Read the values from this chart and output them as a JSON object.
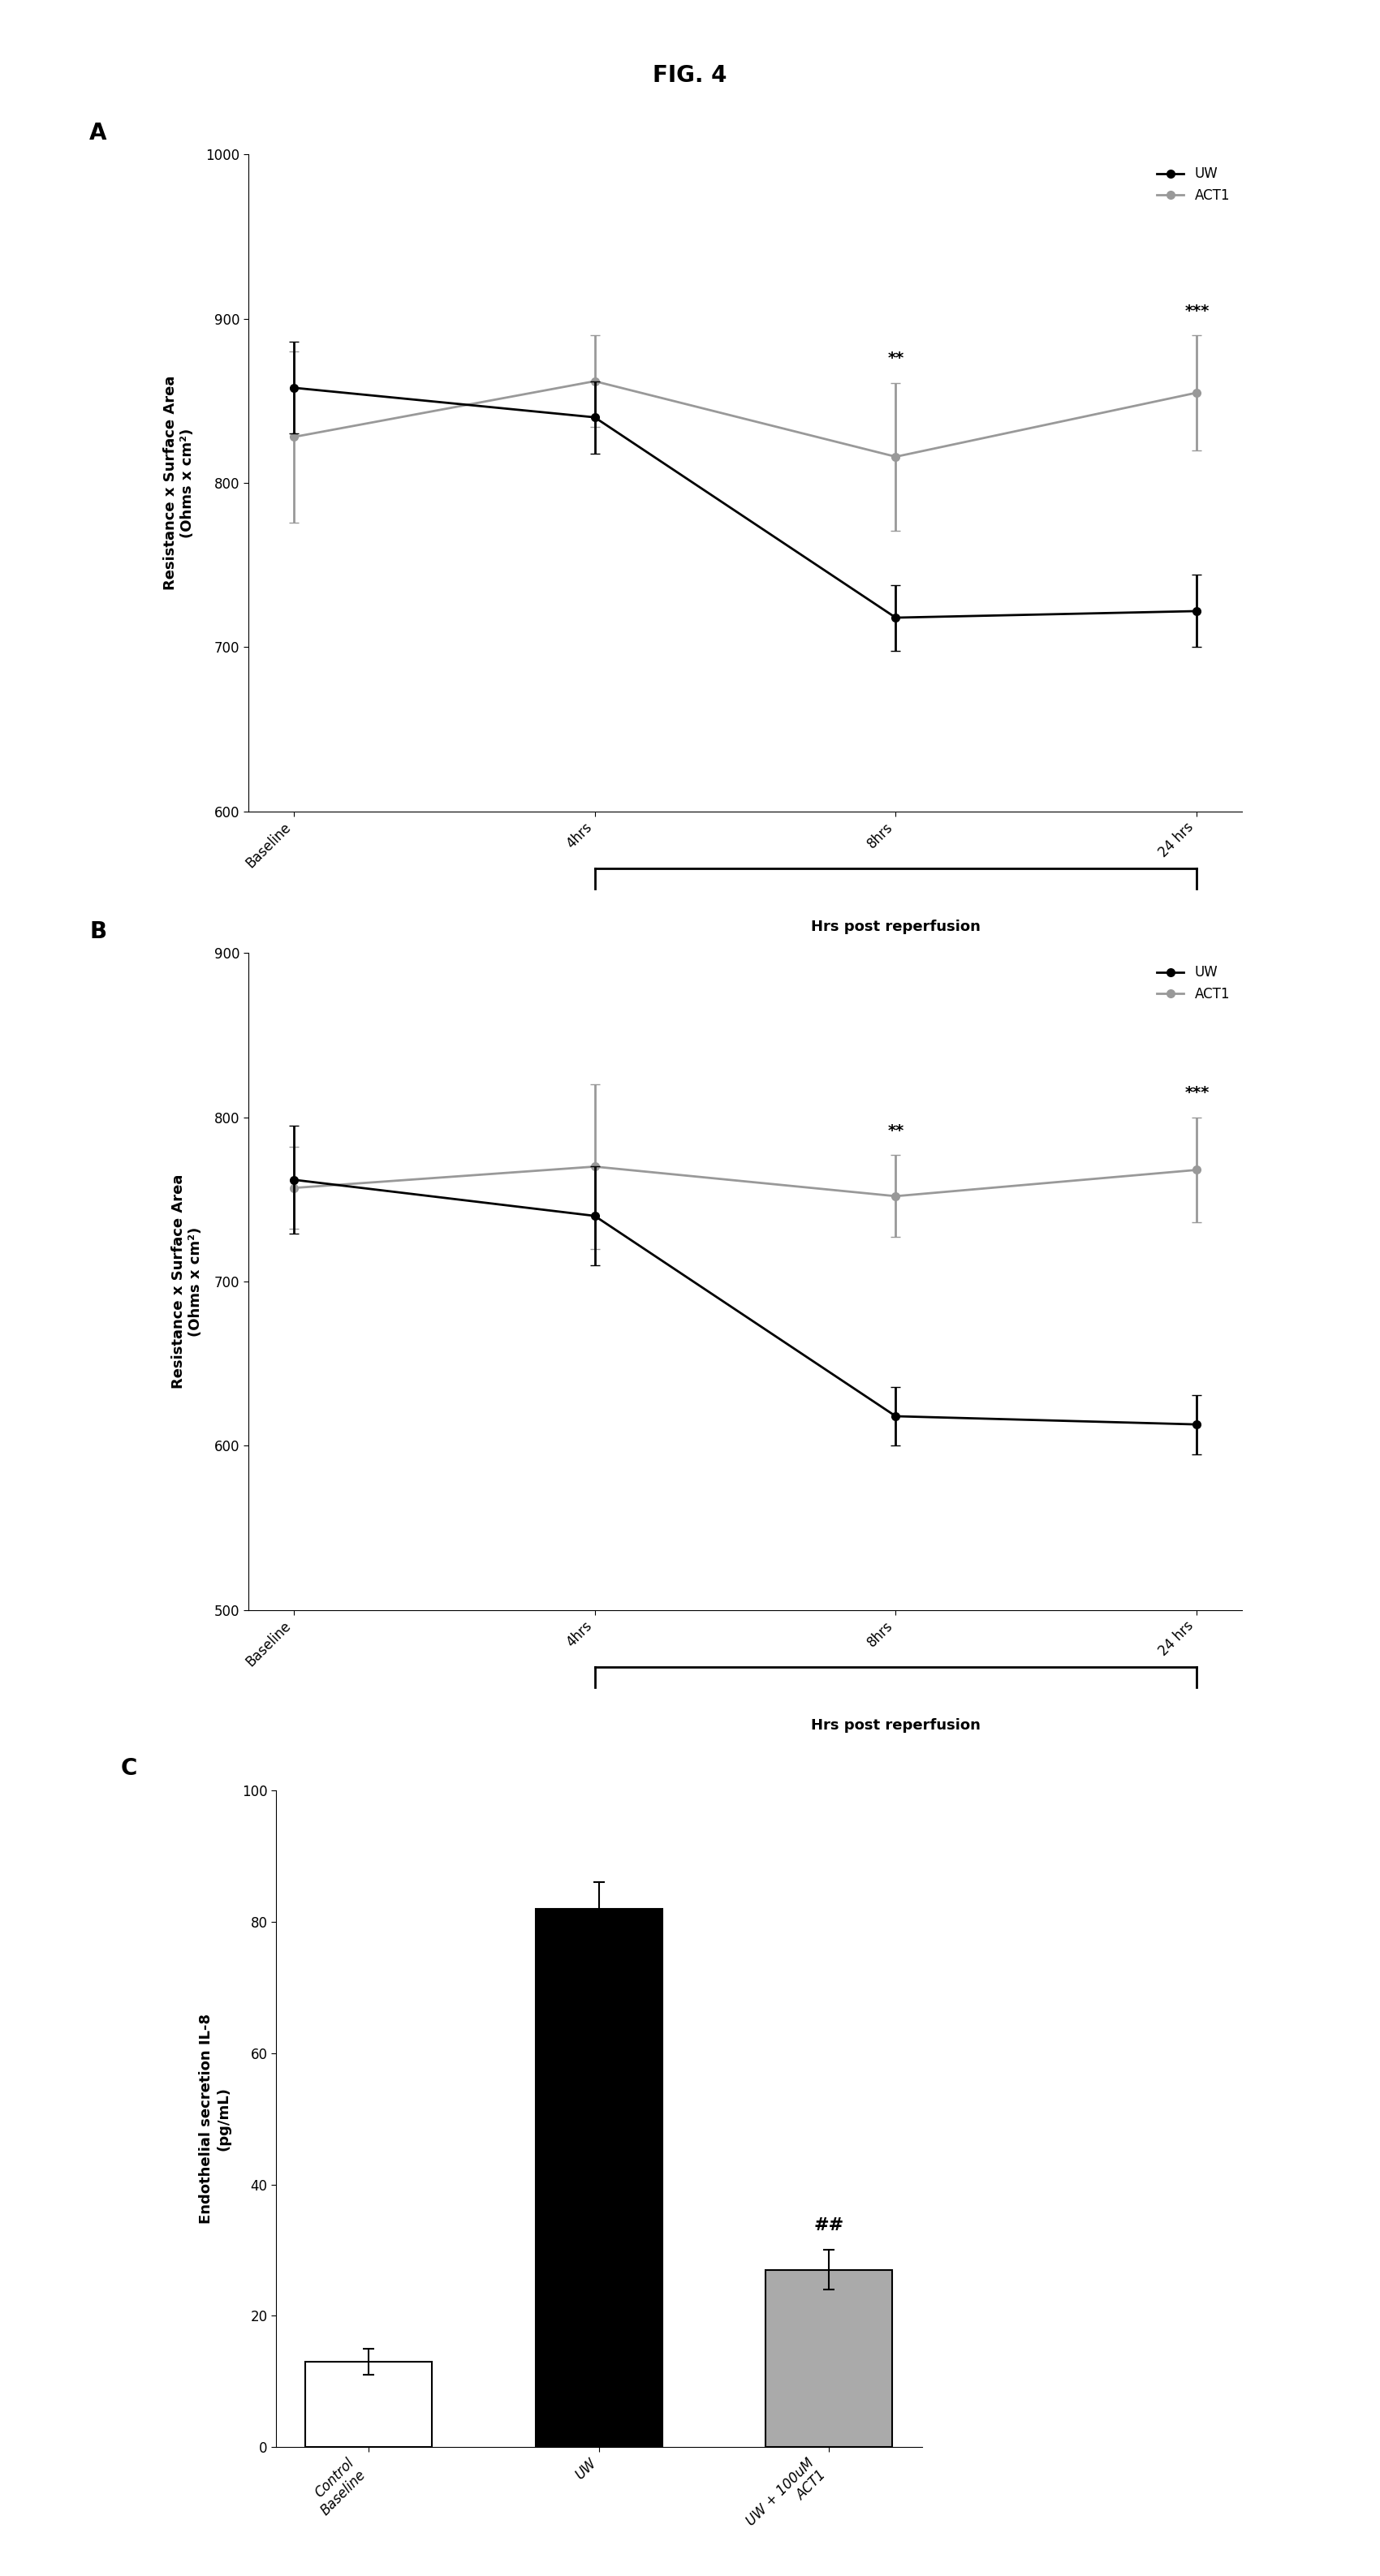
{
  "fig_title": "FIG. 4",
  "panel_A": {
    "label": "A",
    "x_positions": [
      0,
      1,
      2,
      3
    ],
    "x_ticklabels": [
      "Baseline",
      "4hrs",
      "8hrs",
      "24 hrs"
    ],
    "UW_mean": [
      858,
      840,
      718,
      722
    ],
    "UW_err": [
      28,
      22,
      20,
      22
    ],
    "ACT1_mean": [
      828,
      862,
      816,
      855
    ],
    "ACT1_err": [
      52,
      28,
      45,
      35
    ],
    "ylim": [
      600,
      1000
    ],
    "yticks": [
      600,
      700,
      800,
      900,
      1000
    ],
    "ylabel": "Resistance x Surface Area\n(Ohms x cm²)",
    "xlabel_bracket": "Hrs post reperfusion",
    "sig_8hrs": "**",
    "sig_24hrs": "***"
  },
  "panel_B": {
    "label": "B",
    "x_positions": [
      0,
      1,
      2,
      3
    ],
    "x_ticklabels": [
      "Baseline",
      "4hrs",
      "8hrs",
      "24 hrs"
    ],
    "UW_mean": [
      762,
      740,
      618,
      613
    ],
    "UW_err": [
      33,
      30,
      18,
      18
    ],
    "ACT1_mean": [
      757,
      770,
      752,
      768
    ],
    "ACT1_err": [
      25,
      50,
      25,
      32
    ],
    "ylim": [
      500,
      900
    ],
    "yticks": [
      500,
      600,
      700,
      800,
      900
    ],
    "ylabel": "Resistance x Surface Area\n(Ohms x cm²)",
    "xlabel_bracket": "Hrs post reperfusion",
    "sig_8hrs": "**",
    "sig_24hrs": "***"
  },
  "panel_C": {
    "label": "C",
    "categories": [
      "Control\nBaseline",
      "UW",
      "UW + 100uM\nACT1"
    ],
    "means": [
      13,
      82,
      27
    ],
    "errors": [
      2,
      4,
      3
    ],
    "bar_colors": [
      "white",
      "black",
      "#aaaaaa"
    ],
    "bar_edgecolors": [
      "black",
      "black",
      "black"
    ],
    "ylabel": "Endothelial secretion IL-8\n(pg/mL)",
    "ylim": [
      0,
      100
    ],
    "yticks": [
      0,
      20,
      40,
      60,
      80,
      100
    ],
    "sig_UW_ACT1": "##"
  },
  "UW_color": "#000000",
  "ACT1_color": "#999999",
  "UW_marker": "o",
  "ACT1_marker": "o",
  "linewidth": 2.0,
  "markersize": 7,
  "fontsize_title": 20,
  "fontsize_label": 13,
  "fontsize_tick": 12,
  "fontsize_panel_label": 20,
  "fontsize_legend": 12,
  "fontsize_sig": 14,
  "bracket_fontsize": 13
}
